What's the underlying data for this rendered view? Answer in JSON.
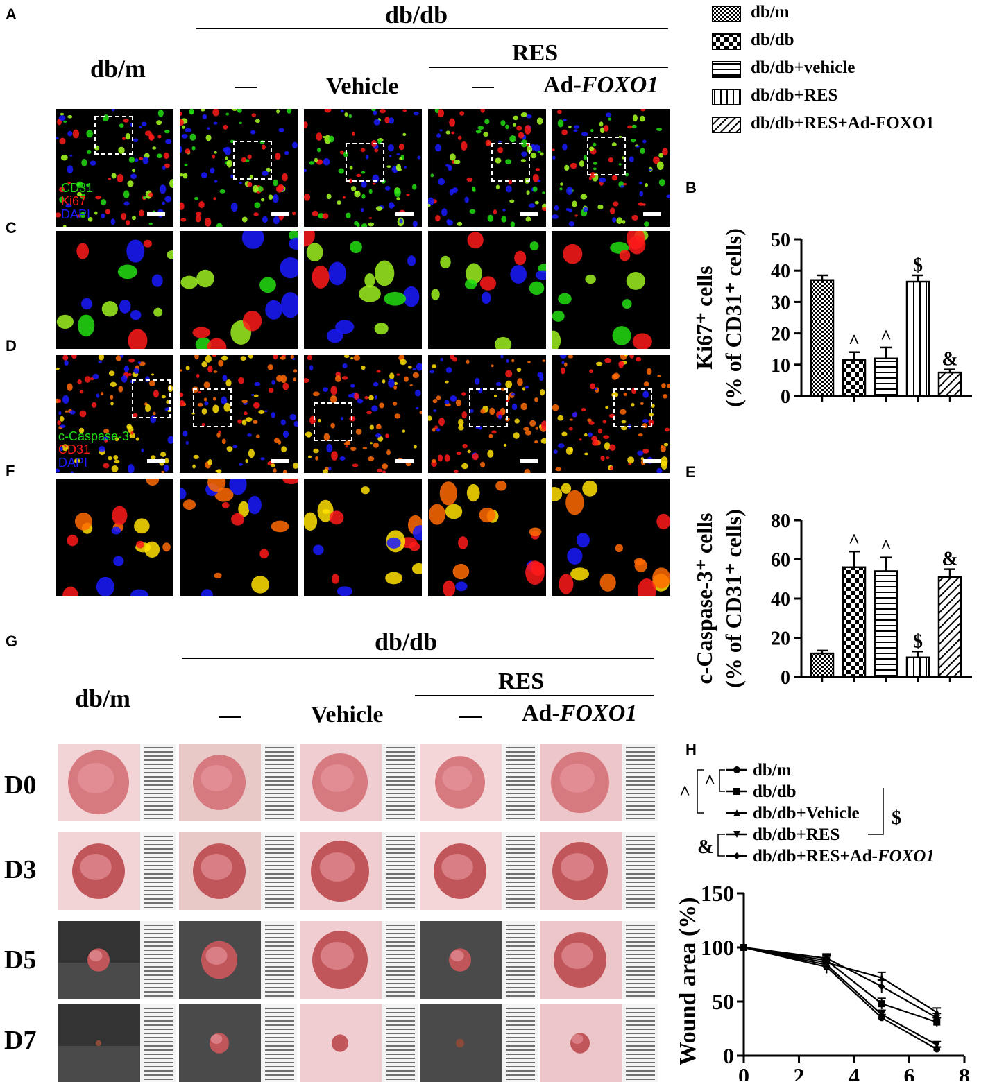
{
  "panel_labels": {
    "A": "A",
    "B": "B",
    "C": "C",
    "D": "D",
    "E": "E",
    "F": "F",
    "G": "G",
    "H": "H"
  },
  "headers": {
    "group": "db/db",
    "dbm": "db/m",
    "res": "RES",
    "dash": "—",
    "vehicle": "Vehicle",
    "ad_prefix": "Ad-",
    "ad_gene": "FOXO1"
  },
  "stain_A": [
    "CD31",
    "Ki67",
    "DAPI"
  ],
  "stain_D": [
    "c-Caspase-3",
    "CD31",
    "DAPI"
  ],
  "stain_colors": {
    "green": "#22dd11",
    "red": "#ff1a1a",
    "blue": "#1a1aff",
    "yellow": "#ffe100"
  },
  "day_labels": [
    "D0",
    "D3",
    "D5",
    "D7"
  ],
  "bar_legend": [
    "db/m",
    "db/db",
    "db/db+vehicle",
    "db/db+RES",
    "db/db+RES+Ad-FOXO1"
  ],
  "line_legend": {
    "items": [
      "db/m",
      "db/db",
      "db/db+Vehicle",
      "db/db+RES",
      "db/db+RES+Ad-"
    ],
    "gene": "FOXO1",
    "brackets": [
      "^",
      "^",
      "$",
      "&"
    ]
  },
  "chart_data": [
    {
      "id": "B",
      "type": "bar",
      "ylabel_line1": "Ki67⁺ cells",
      "ylabel_line2": "(% of CD31⁺ cells)",
      "ylim": [
        0,
        50
      ],
      "yticks": [
        0,
        10,
        20,
        30,
        40,
        50
      ],
      "categories": [
        "db/m",
        "db/db",
        "db/db+vehicle",
        "db/db+RES",
        "db/db+RES+Ad-FOXO1"
      ],
      "values": [
        37,
        11.5,
        12,
        36.5,
        7.5
      ],
      "errors": [
        1.5,
        2.5,
        3.5,
        2,
        1
      ],
      "annotations": [
        "",
        "^",
        "^",
        "$",
        "&"
      ]
    },
    {
      "id": "E",
      "type": "bar",
      "ylabel_line1": "c-Caspase-3⁺ cells",
      "ylabel_line2": "(% of CD31⁺ cells)",
      "ylim": [
        0,
        80
      ],
      "yticks": [
        0,
        20,
        40,
        60,
        80
      ],
      "categories": [
        "db/m",
        "db/db",
        "db/db+vehicle",
        "db/db+RES",
        "db/db+RES+Ad-FOXO1"
      ],
      "values": [
        12,
        56,
        54,
        10,
        51
      ],
      "errors": [
        1.5,
        8,
        7,
        3,
        4
      ],
      "annotations": [
        "",
        "^",
        "^",
        "$",
        "&"
      ]
    },
    {
      "id": "H",
      "type": "line",
      "ylabel": "Wound area (%)",
      "xlim": [
        0,
        8
      ],
      "ylim": [
        0,
        150
      ],
      "xticks": [
        0,
        2,
        4,
        6,
        8
      ],
      "yticks": [
        0,
        50,
        100,
        150
      ],
      "x": [
        0,
        3,
        5,
        7
      ],
      "series": [
        {
          "name": "db/m",
          "marker": "circle",
          "values": [
            100,
            82,
            35,
            6
          ],
          "errors": [
            0,
            6,
            3,
            2
          ]
        },
        {
          "name": "db/db",
          "marker": "square",
          "values": [
            100,
            88,
            48,
            31
          ],
          "errors": [
            0,
            5,
            5,
            4
          ]
        },
        {
          "name": "db/db+Vehicle",
          "marker": "triangle-up",
          "values": [
            100,
            86,
            72,
            40
          ],
          "errors": [
            0,
            6,
            5,
            4
          ]
        },
        {
          "name": "db/db+RES",
          "marker": "triangle-down",
          "values": [
            100,
            84,
            38,
            10
          ],
          "errors": [
            0,
            8,
            4,
            3
          ]
        },
        {
          "name": "db/db+RES+Ad-FOXO1",
          "marker": "diamond",
          "values": [
            100,
            90,
            64,
            35
          ],
          "errors": [
            0,
            4,
            6,
            4
          ]
        }
      ]
    }
  ]
}
